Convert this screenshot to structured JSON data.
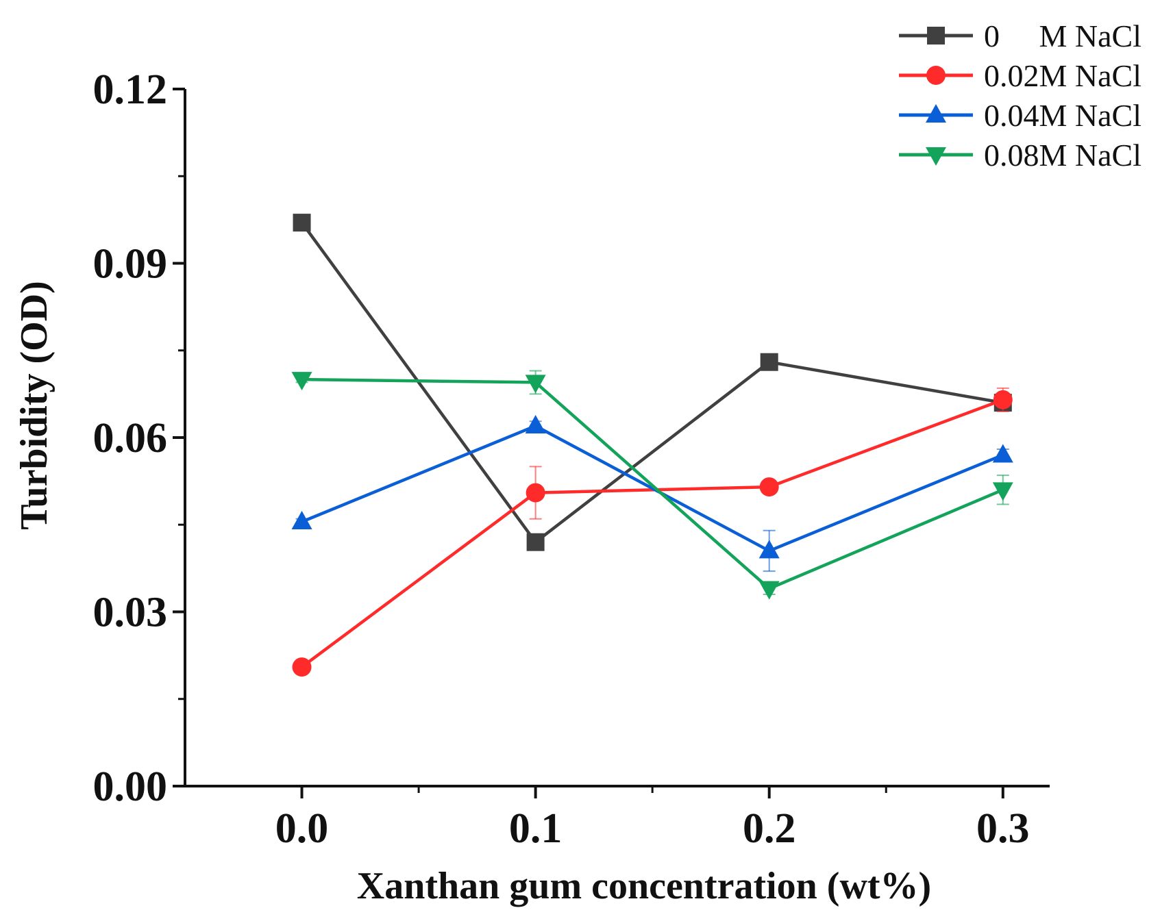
{
  "chart_data": {
    "type": "line",
    "title": "",
    "xlabel": "Xanthan gum  concentration (wt%)",
    "ylabel": "Turbidity (OD)",
    "xlim": [
      -0.05,
      0.32
    ],
    "ylim": [
      0.0,
      0.12
    ],
    "x": [
      0.0,
      0.1,
      0.2,
      0.3
    ],
    "xtick_labels": [
      "0.0",
      "0.1",
      "0.2",
      "0.3"
    ],
    "yticks": [
      0.0,
      0.03,
      0.06,
      0.09,
      0.12
    ],
    "ytick_labels": [
      "0.00",
      "0.03",
      "0.06",
      "0.09",
      "0.12"
    ],
    "legend_position": "top-right",
    "series": [
      {
        "name": "0     M NaCl",
        "color": "#404040",
        "marker": "square",
        "values": [
          0.097,
          0.042,
          0.073,
          0.066
        ],
        "errors": [
          0.0005,
          0.0008,
          0.0008,
          0.0008
        ]
      },
      {
        "name": "0.02M NaCl",
        "color": "#ff2a2a",
        "marker": "circle",
        "values": [
          0.0205,
          0.0505,
          0.0515,
          0.0665
        ],
        "errors": [
          0.001,
          0.0045,
          0.0008,
          0.002
        ]
      },
      {
        "name": "0.04M NaCl",
        "color": "#0a5fd6",
        "marker": "triangle-up",
        "values": [
          0.0455,
          0.062,
          0.0405,
          0.057
        ],
        "errors": [
          0.0005,
          0.0008,
          0.0035,
          0.001
        ]
      },
      {
        "name": "0.08M NaCl",
        "color": "#14a35a",
        "marker": "triangle-down",
        "values": [
          0.07,
          0.0695,
          0.034,
          0.051
        ],
        "errors": [
          0.0005,
          0.002,
          0.001,
          0.0025
        ]
      }
    ]
  }
}
